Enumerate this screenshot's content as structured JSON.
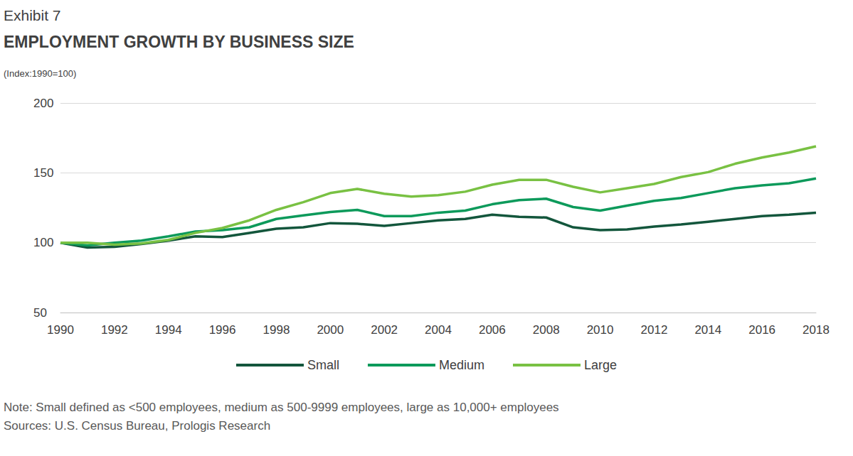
{
  "chart_data": {
    "type": "line",
    "title": "EMPLOYMENT GROWTH BY BUSINESS SIZE",
    "subtitle": "(Index:1990=100)",
    "annotations": [
      "Exhibit 7",
      "Note: Small defined as <500 employees, medium as 500-9999 employees, large as 10,000+ employees",
      "Sources: U.S. Census Bureau, Prologis Research"
    ],
    "x": [
      1990,
      1991,
      1992,
      1993,
      1994,
      1995,
      1996,
      1997,
      1998,
      1999,
      2000,
      2001,
      2002,
      2003,
      2004,
      2005,
      2006,
      2007,
      2008,
      2009,
      2010,
      2011,
      2012,
      2013,
      2014,
      2015,
      2016,
      2017,
      2018
    ],
    "series": [
      {
        "name": "Small",
        "color": "#13563c",
        "values": [
          100,
          96.5,
          97,
          99,
          101.5,
          104.5,
          104,
          107,
          110,
          111,
          114,
          113.5,
          112,
          114,
          116,
          117,
          120,
          118.5,
          118,
          111,
          109,
          109.5,
          111.5,
          113,
          115,
          117,
          119,
          120,
          121.5
        ]
      },
      {
        "name": "Medium",
        "color": "#0d9a5b",
        "values": [
          100,
          98,
          100,
          101.5,
          104.5,
          108,
          109,
          111,
          117,
          119.5,
          122,
          123.5,
          119,
          119,
          121.5,
          123,
          127.5,
          130.5,
          131.5,
          125.5,
          123,
          126.5,
          130,
          132,
          135.5,
          139,
          141,
          142.5,
          146
        ]
      },
      {
        "name": "Large",
        "color": "#79c143",
        "values": [
          100,
          100,
          98.5,
          99.5,
          102,
          107,
          110.5,
          116,
          123.5,
          129,
          135.5,
          138.5,
          135,
          133,
          134,
          136.5,
          141.5,
          145,
          145,
          140,
          136,
          139,
          142,
          147,
          150.5,
          156.5,
          161,
          164.5,
          169
        ]
      }
    ],
    "xlim": [
      1990,
      2018
    ],
    "xticks": [
      1990,
      1992,
      1994,
      1996,
      1998,
      2000,
      2002,
      2004,
      2006,
      2008,
      2010,
      2012,
      2014,
      2016,
      2018
    ],
    "ylim": [
      50,
      200
    ],
    "yticks": [
      50,
      100,
      150,
      200
    ],
    "grid": true,
    "legend": "bottom"
  }
}
